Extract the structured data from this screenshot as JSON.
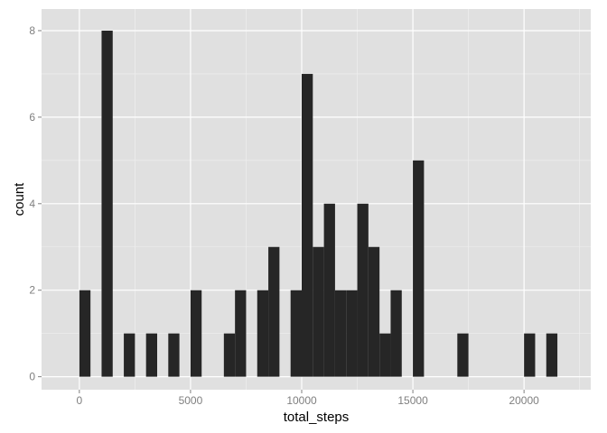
{
  "chart_data": {
    "type": "bar",
    "xlabel": "total_steps",
    "ylabel": "count",
    "xlim": [
      -1700,
      23000
    ],
    "ylim": [
      -0.3,
      8.5
    ],
    "x_ticks": [
      0,
      5000,
      10000,
      15000,
      20000
    ],
    "y_ticks": [
      0,
      2,
      4,
      6,
      8
    ],
    "x_tick_labels": [
      "0",
      "5000",
      "10000",
      "15000",
      "20000"
    ],
    "y_tick_labels": [
      "0",
      "2",
      "4",
      "6",
      "8"
    ],
    "grid": true,
    "background": "#e0e0e0",
    "bar_color": "#262626",
    "bin_width": 500,
    "bins": [
      {
        "start": 0,
        "count": 2
      },
      {
        "start": 1000,
        "count": 8
      },
      {
        "start": 2000,
        "count": 1
      },
      {
        "start": 3000,
        "count": 1
      },
      {
        "start": 4000,
        "count": 1
      },
      {
        "start": 5000,
        "count": 2
      },
      {
        "start": 6500,
        "count": 1
      },
      {
        "start": 7000,
        "count": 2
      },
      {
        "start": 8000,
        "count": 2
      },
      {
        "start": 8500,
        "count": 3
      },
      {
        "start": 9500,
        "count": 2
      },
      {
        "start": 10000,
        "count": 7
      },
      {
        "start": 10500,
        "count": 3
      },
      {
        "start": 11000,
        "count": 4
      },
      {
        "start": 11500,
        "count": 2
      },
      {
        "start": 12000,
        "count": 2
      },
      {
        "start": 12500,
        "count": 4
      },
      {
        "start": 13000,
        "count": 3
      },
      {
        "start": 13500,
        "count": 1
      },
      {
        "start": 14000,
        "count": 2
      },
      {
        "start": 15000,
        "count": 5
      },
      {
        "start": 17000,
        "count": 1
      },
      {
        "start": 20000,
        "count": 1
      },
      {
        "start": 21000,
        "count": 1
      }
    ]
  }
}
